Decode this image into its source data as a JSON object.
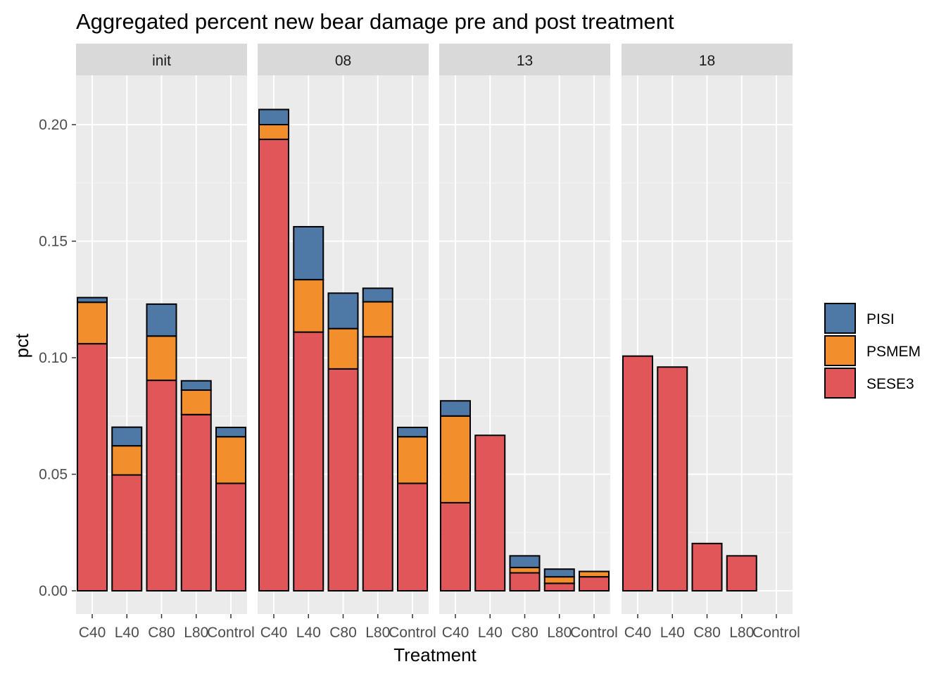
{
  "chart_data": {
    "type": "bar",
    "stacked": true,
    "title": "Aggregated percent new bear damage pre and post treatment",
    "xlabel": "Treatment",
    "ylabel": "pct",
    "ylim": [
      -0.01,
      0.222
    ],
    "y_ticks": [
      "0.00",
      "0.05",
      "0.10",
      "0.15",
      "0.20"
    ],
    "y_tick_values": [
      0,
      0.05,
      0.1,
      0.15,
      0.2
    ],
    "categories": [
      "C40",
      "L40",
      "C80",
      "L80",
      "Control"
    ],
    "grid": true,
    "legend_position": "right",
    "legend": [
      {
        "name": "PISI",
        "color": "#4E79A7"
      },
      {
        "name": "PSMEM",
        "color": "#F28E2B"
      },
      {
        "name": "SESE3",
        "color": "#E15759"
      }
    ],
    "facets": [
      {
        "label": "init",
        "series": [
          {
            "name": "SESE3",
            "values": [
              0.106,
              0.0497,
              0.0903,
              0.0756,
              0.0461
            ]
          },
          {
            "name": "PSMEM",
            "values": [
              0.0178,
              0.0125,
              0.019,
              0.0105,
              0.02
            ]
          },
          {
            "name": "PISI",
            "values": [
              0.002,
              0.008,
              0.0137,
              0.004,
              0.004
            ]
          }
        ]
      },
      {
        "label": "08",
        "series": [
          {
            "name": "SESE3",
            "values": [
              0.1937,
              0.111,
              0.0952,
              0.109,
              0.0461
            ]
          },
          {
            "name": "PSMEM",
            "values": [
              0.0063,
              0.0225,
              0.0173,
              0.015,
              0.02
            ]
          },
          {
            "name": "PISI",
            "values": [
              0.0065,
              0.0227,
              0.0152,
              0.0058,
              0.004
            ]
          }
        ]
      },
      {
        "label": "13",
        "series": [
          {
            "name": "SESE3",
            "values": [
              0.0378,
              0.0667,
              0.0077,
              0.0032,
              0.006
            ]
          },
          {
            "name": "PSMEM",
            "values": [
              0.0372,
              0,
              0.0023,
              0.0028,
              0.0023
            ]
          },
          {
            "name": "PISI",
            "values": [
              0.0065,
              0,
              0.005,
              0.0033,
              0
            ]
          }
        ]
      },
      {
        "label": "18",
        "series": [
          {
            "name": "SESE3",
            "values": [
              0.1007,
              0.096,
              0.0203,
              0.015,
              0
            ]
          },
          {
            "name": "PSMEM",
            "values": [
              0,
              0,
              0,
              0,
              0
            ]
          },
          {
            "name": "PISI",
            "values": [
              0,
              0,
              0,
              0,
              0
            ]
          }
        ]
      }
    ]
  }
}
